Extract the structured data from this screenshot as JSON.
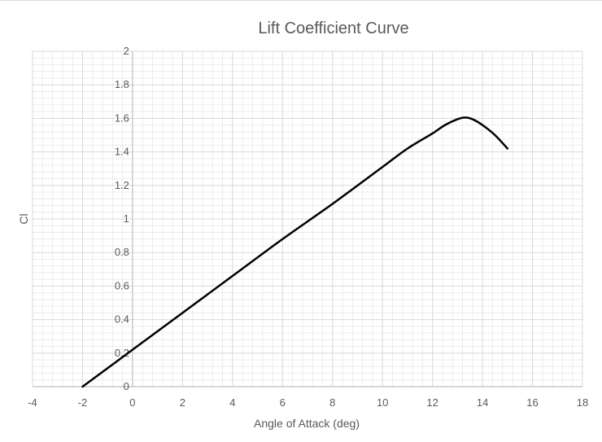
{
  "chart_data": {
    "type": "line",
    "title": "Lift Coefficient Curve",
    "xlabel": "Angle of Attack (deg)",
    "ylabel": "Cl",
    "xlim": [
      -4,
      18
    ],
    "ylim": [
      0,
      2
    ],
    "xticks": [
      -4,
      -2,
      0,
      2,
      4,
      6,
      8,
      10,
      12,
      14,
      16,
      18
    ],
    "yticks": [
      0,
      0.2,
      0.4,
      0.6,
      0.8,
      1,
      1.2,
      1.4,
      1.6,
      1.8,
      2
    ],
    "grid": true,
    "minor_grid": true,
    "legend": "none",
    "series": [
      {
        "color": "#000000",
        "x": [
          -2,
          0,
          2,
          4,
          6,
          8,
          10,
          11,
          12,
          12.5,
          13,
          13.3,
          13.6,
          14,
          14.5,
          15
        ],
        "y": [
          0,
          0.22,
          0.44,
          0.66,
          0.88,
          1.09,
          1.31,
          1.42,
          1.51,
          1.56,
          1.595,
          1.605,
          1.595,
          1.56,
          1.5,
          1.42
        ]
      }
    ]
  }
}
